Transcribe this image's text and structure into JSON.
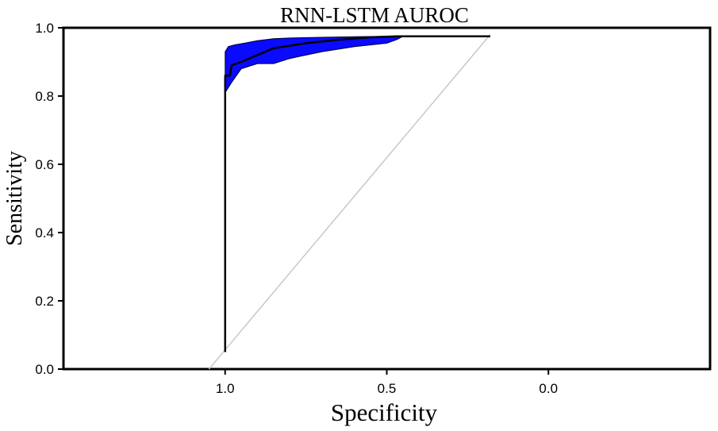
{
  "chart_data": {
    "type": "line",
    "title": "RNN-LSTM AUROC",
    "xlabel": "Specificity",
    "ylabel": "Sensitivity",
    "x_reversed": true,
    "xlim": [
      1.5,
      -0.5
    ],
    "ylim": [
      0.0,
      1.0
    ],
    "xticks": [
      {
        "value": 1.0,
        "label": "1.0"
      },
      {
        "value": 0.5,
        "label": "0.5"
      },
      {
        "value": 0.0,
        "label": "0.0"
      }
    ],
    "yticks": [
      {
        "value": 0.0,
        "label": "0.0"
      },
      {
        "value": 0.2,
        "label": "0.2"
      },
      {
        "value": 0.4,
        "label": "0.4"
      },
      {
        "value": 0.6,
        "label": "0.6"
      },
      {
        "value": 0.8,
        "label": "0.8"
      },
      {
        "value": 1.0,
        "label": "1.0"
      }
    ],
    "grid": false,
    "colors": {
      "roc": "#000000",
      "ci_band": "#0a0aff",
      "diagonal": "#c8c8c8",
      "frame": "#000000"
    },
    "reference_line": {
      "x": [
        1.05,
        0.18
      ],
      "y": [
        0.0,
        0.98
      ]
    },
    "roc_curve": {
      "x": [
        1.0,
        1.0,
        1.0,
        0.985,
        0.98,
        0.95,
        0.9,
        0.85,
        0.75,
        0.65,
        0.55,
        0.47,
        0.45,
        0.3,
        0.18
      ],
      "y": [
        0.05,
        0.5,
        0.86,
        0.86,
        0.89,
        0.9,
        0.92,
        0.94,
        0.955,
        0.965,
        0.972,
        0.975,
        0.975,
        0.975,
        0.975
      ]
    },
    "ci_band": {
      "upper": {
        "x": [
          1.0,
          0.99,
          0.97,
          0.94,
          0.9,
          0.85,
          0.8,
          0.7,
          0.6,
          0.5,
          0.45
        ],
        "y": [
          0.93,
          0.945,
          0.95,
          0.955,
          0.962,
          0.968,
          0.97,
          0.972,
          0.974,
          0.975,
          0.975
        ]
      },
      "lower": {
        "x": [
          1.0,
          0.98,
          0.95,
          0.9,
          0.85,
          0.8,
          0.7,
          0.6,
          0.5,
          0.47,
          0.45
        ],
        "y": [
          0.81,
          0.84,
          0.88,
          0.895,
          0.895,
          0.91,
          0.93,
          0.945,
          0.955,
          0.965,
          0.975
        ]
      }
    }
  }
}
